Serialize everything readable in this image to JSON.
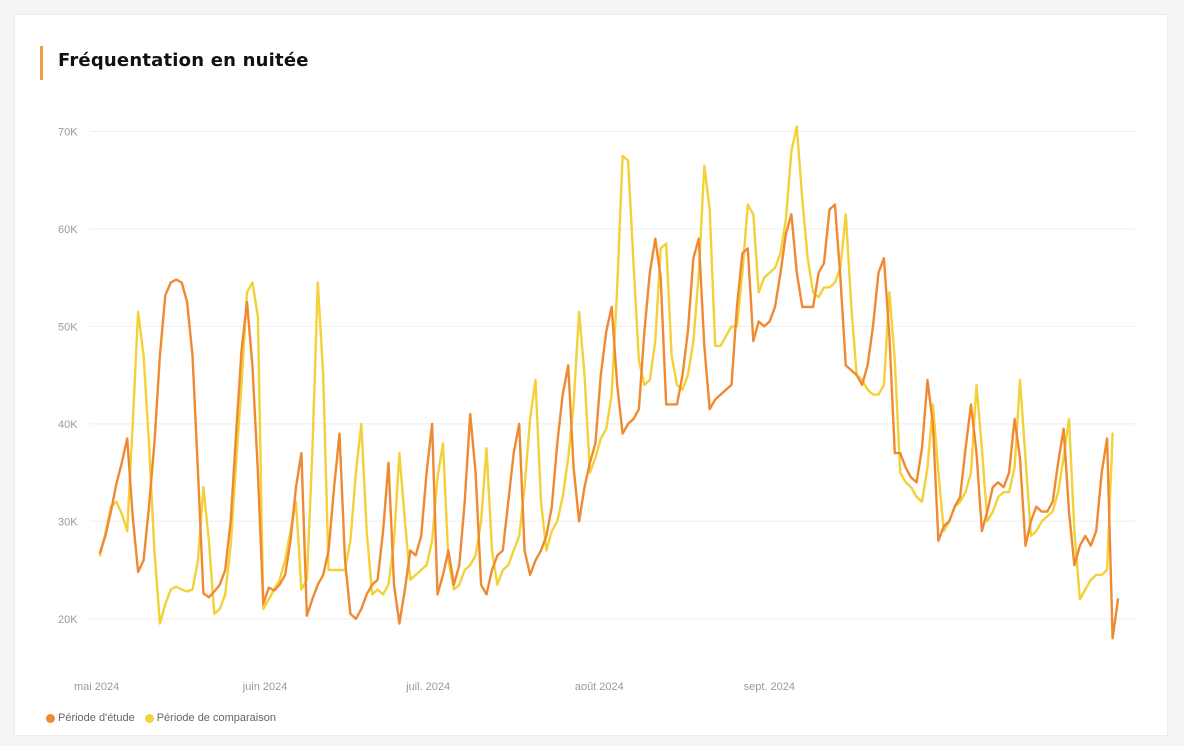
{
  "card": {
    "title": "Fréquentation en nuitée"
  },
  "colors": {
    "accent": "#f09a4a",
    "series_study": "#f08a32",
    "series_comparison": "#f3d138",
    "grid": "#eeeeee"
  },
  "legend": {
    "items": [
      "Période d'étude",
      "Période de comparaison"
    ]
  },
  "chart_data": {
    "type": "line",
    "title": "Fréquentation en nuitée",
    "xlabel": "",
    "ylabel": "",
    "grid": true,
    "legend_position": "bottom-left",
    "y_ticks": [
      20000,
      30000,
      40000,
      50000,
      60000,
      70000
    ],
    "y_tick_labels": [
      "20K",
      "30K",
      "40K",
      "50K",
      "60K",
      "70K"
    ],
    "ylim": [
      17000,
      72000
    ],
    "x_tick_labels": [
      "mai 2024",
      "juin 2024",
      "juil. 2024",
      "août 2024",
      "sept. 2024"
    ],
    "x_tick_index": [
      0,
      31,
      61,
      92,
      123
    ],
    "x_start": "2024-05-01",
    "x_end": "2024-09-30",
    "series": [
      {
        "name": "Période d'étude",
        "values": [
          26800,
          28500,
          31000,
          33800,
          36000,
          38500,
          30500,
          24800,
          26000,
          31500,
          38000,
          47000,
          53200,
          54500,
          54800,
          54500,
          52500,
          47000,
          35000,
          22600,
          22200,
          22800,
          23500,
          25000,
          30000,
          39000,
          47500,
          52500,
          46000,
          35000,
          21500,
          23200,
          22900,
          23500,
          24500,
          28000,
          33500,
          37000,
          20300,
          22000,
          23500,
          24500,
          27000,
          33500,
          39000,
          26000,
          20500,
          20000,
          21000,
          22500,
          23500,
          24000,
          29000,
          36000,
          23500,
          19500,
          23000,
          27000,
          26500,
          28500,
          35000,
          40000,
          22500,
          24500,
          27000,
          23500,
          25500,
          32000,
          41000,
          35000,
          23500,
          22500,
          25000,
          26500,
          27000,
          32000,
          37000,
          40000,
          27000,
          24500,
          26000,
          27000,
          28500,
          31500,
          38000,
          43000,
          46000,
          35500,
          30000,
          33500,
          36000,
          38000,
          45000,
          49500,
          52000,
          44000,
          39000,
          40000,
          40500,
          41500,
          49500,
          55500,
          59000,
          55000,
          42000,
          42000,
          42000,
          45000,
          49500,
          57000,
          59000,
          48000,
          41500,
          42500,
          43000,
          43500,
          44000,
          52000,
          57500,
          58000,
          48500,
          50500,
          50000,
          50500,
          52000,
          55500,
          59500,
          61500,
          55500,
          52000,
          52000,
          52000,
          55500,
          56500,
          62000,
          62500,
          55000,
          46000,
          45500,
          45000,
          44000,
          46000,
          50000,
          55500,
          57000,
          49000,
          37000,
          37000,
          35500,
          34500,
          34000,
          37500,
          44500,
          40000,
          28000,
          29500,
          30000,
          31500,
          32500,
          37500,
          42000,
          37000,
          29000,
          31000,
          33500,
          34000,
          33500,
          35000,
          40500,
          36500,
          27500,
          30000,
          31500,
          31000,
          31000,
          32000,
          36000,
          39500,
          31000,
          25500,
          27500,
          28500,
          27500,
          29000,
          35000,
          38500,
          18000,
          22000
        ]
      },
      {
        "name": "Période de comparaison",
        "values": [
          26500,
          28800,
          31500,
          32000,
          30800,
          29000,
          40000,
          51500,
          47000,
          38000,
          27000,
          19500,
          21500,
          23000,
          23300,
          23000,
          22800,
          23000,
          26000,
          33500,
          28000,
          20500,
          21000,
          22500,
          27500,
          36000,
          44000,
          53500,
          54500,
          51000,
          21000,
          22000,
          23000,
          24000,
          26000,
          29000,
          32000,
          23000,
          24000,
          37000,
          54500,
          45000,
          25000,
          25000,
          25000,
          25000,
          28000,
          35000,
          40000,
          29000,
          22500,
          23000,
          22500,
          23500,
          28000,
          37000,
          30000,
          24000,
          24500,
          25000,
          25500,
          28000,
          34500,
          38000,
          26000,
          23000,
          23500,
          25000,
          25500,
          26500,
          30000,
          37500,
          27000,
          23500,
          25000,
          25500,
          27000,
          28500,
          33500,
          40500,
          44500,
          32000,
          27000,
          29000,
          30000,
          32500,
          36500,
          42000,
          51500,
          45000,
          35000,
          36500,
          38500,
          39500,
          43000,
          54000,
          67500,
          67000,
          56500,
          46500,
          44000,
          44500,
          48500,
          58000,
          58500,
          47000,
          44000,
          43500,
          45000,
          48500,
          55500,
          66500,
          62000,
          48000,
          48000,
          49000,
          50000,
          50000,
          55500,
          62500,
          61500,
          53500,
          55000,
          55500,
          56000,
          57500,
          61000,
          68000,
          70500,
          63000,
          57000,
          53500,
          53000,
          54000,
          54000,
          54500,
          56000,
          61500,
          52000,
          45000,
          44500,
          43500,
          43000,
          43000,
          44000,
          53500,
          46500,
          35000,
          34000,
          33500,
          32500,
          32000,
          35500,
          42000,
          35000,
          29000,
          30000,
          31500,
          32000,
          33000,
          35000,
          44000,
          37500,
          30000,
          31000,
          32500,
          33000,
          33000,
          35500,
          44500,
          36500,
          28500,
          29000,
          30000,
          30500,
          31000,
          33000,
          36500,
          40500,
          29000,
          22000,
          23000,
          24000,
          24500,
          24500,
          25000,
          39000
        ]
      }
    ]
  }
}
